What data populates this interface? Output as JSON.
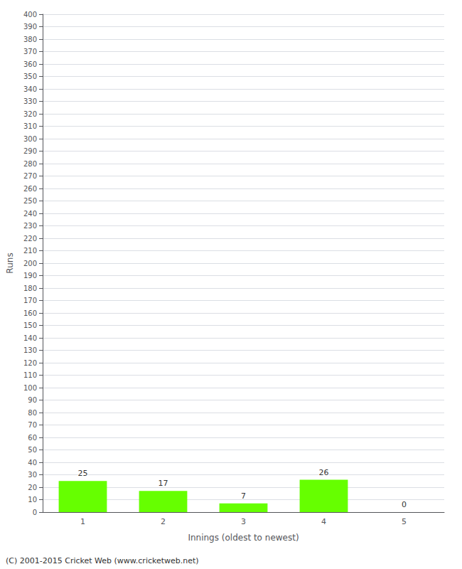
{
  "chart_data": {
    "type": "bar",
    "xlabel": "Innings (oldest to newest)",
    "ylabel": "Runs",
    "categories": [
      1,
      2,
      3,
      4,
      5
    ],
    "values": [
      25,
      17,
      7,
      26,
      0
    ],
    "color": "#66ff00",
    "ylim": [
      0,
      400
    ],
    "yticks": [
      0,
      10,
      20,
      30,
      40,
      50,
      60,
      70,
      80,
      90,
      100,
      110,
      120,
      130,
      140,
      150,
      160,
      170,
      180,
      190,
      200,
      210,
      220,
      230,
      240,
      250,
      260,
      270,
      280,
      290,
      300,
      310,
      320,
      330,
      340,
      350,
      360,
      370,
      380,
      390,
      400
    ],
    "grid": true,
    "data_labels": true,
    "annotations": [
      "(C) 2001-2015 Cricket Web (www.cricketweb.net)"
    ]
  }
}
